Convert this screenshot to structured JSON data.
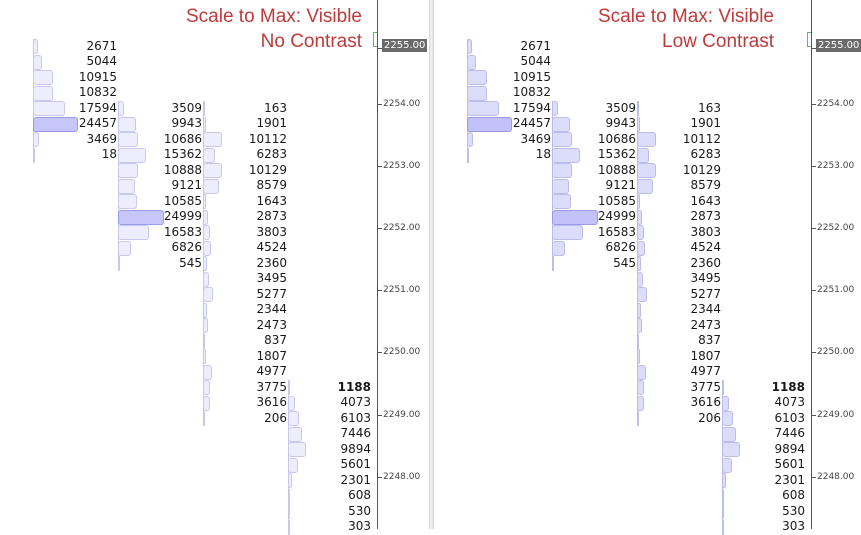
{
  "colors": {
    "title": "#c0393b",
    "price_tag_bg": "#6a6a6a",
    "price_marker": "#58c058",
    "no_contrast": {
      "fill": "#ededfd",
      "fill_max": "#c6c6fb",
      "border": "#c8c8ee",
      "border_max": "#9a9ae6"
    },
    "low_contrast": {
      "fill": "#dcdcfb",
      "fill_max": "#c2c2f8",
      "border": "#bcbcec",
      "border_max": "#9a9ae6"
    }
  },
  "panels": [
    {
      "id": "left",
      "title_line1": "Scale to Max: Visible",
      "title_line2": "No Contrast",
      "palette": "no_contrast",
      "current_price": "2255.00",
      "axis_labels": [
        "2255.00",
        "2254.00",
        "2253.00",
        "2252.00",
        "2251.00",
        "2250.00",
        "2249.00",
        "2248.00"
      ],
      "columns": [
        {
          "rows": [
            {
              "value": 2671,
              "level": 1
            },
            {
              "value": 5044,
              "level": 2
            },
            {
              "value": 10915,
              "level": 3
            },
            {
              "value": 10832,
              "level": 4
            },
            {
              "value": 17594,
              "level": 5
            },
            {
              "value": 24457,
              "level": 6
            },
            {
              "value": 3469,
              "level": 7
            },
            {
              "value": 18,
              "level": 8
            }
          ]
        },
        {
          "rows": [
            {
              "value": 3509,
              "level": 5
            },
            {
              "value": 9943,
              "level": 6
            },
            {
              "value": 10686,
              "level": 7
            },
            {
              "value": 15362,
              "level": 8
            },
            {
              "value": 10888,
              "level": 9
            },
            {
              "value": 9121,
              "level": 10
            },
            {
              "value": 10585,
              "level": 11
            },
            {
              "value": 24999,
              "level": 12
            },
            {
              "value": 16583,
              "level": 13
            },
            {
              "value": 6826,
              "level": 14
            },
            {
              "value": 545,
              "level": 15
            }
          ]
        },
        {
          "rows": [
            {
              "value": 163,
              "level": 5
            },
            {
              "value": 1901,
              "level": 6
            },
            {
              "value": 10112,
              "level": 7
            },
            {
              "value": 6283,
              "level": 8
            },
            {
              "value": 10129,
              "level": 9
            },
            {
              "value": 8579,
              "level": 10
            },
            {
              "value": 1643,
              "level": 11
            },
            {
              "value": 2873,
              "level": 12
            },
            {
              "value": 3803,
              "level": 13
            },
            {
              "value": 4524,
              "level": 14
            },
            {
              "value": 2360,
              "level": 15
            },
            {
              "value": 3495,
              "level": 16
            },
            {
              "value": 5277,
              "level": 17
            },
            {
              "value": 2344,
              "level": 18
            },
            {
              "value": 2473,
              "level": 19
            },
            {
              "value": 837,
              "level": 20
            },
            {
              "value": 1807,
              "level": 21
            },
            {
              "value": 4977,
              "level": 22
            },
            {
              "value": 3775,
              "level": 23
            },
            {
              "value": 3616,
              "level": 24
            },
            {
              "value": 206,
              "level": 25
            }
          ]
        },
        {
          "rows": [
            {
              "value": 1188,
              "level": 23,
              "bold": true
            },
            {
              "value": 4073,
              "level": 24
            },
            {
              "value": 6103,
              "level": 25
            },
            {
              "value": 7446,
              "level": 26
            },
            {
              "value": 9894,
              "level": 27
            },
            {
              "value": 5601,
              "level": 28
            },
            {
              "value": 2301,
              "level": 29
            },
            {
              "value": 608,
              "level": 30
            },
            {
              "value": 530,
              "level": 31
            },
            {
              "value": 303,
              "level": 32
            }
          ]
        }
      ]
    },
    {
      "id": "right",
      "title_line1": "Scale to Max: Visible",
      "title_line2": "Low Contrast",
      "palette": "low_contrast",
      "current_price": "2255.00",
      "axis_labels": [
        "2255.00",
        "2254.00",
        "2253.00",
        "2252.00",
        "2251.00",
        "2250.00",
        "2249.00",
        "2248.00"
      ],
      "columns": [
        {
          "rows": [
            {
              "value": 2671,
              "level": 1
            },
            {
              "value": 5044,
              "level": 2
            },
            {
              "value": 10915,
              "level": 3
            },
            {
              "value": 10832,
              "level": 4
            },
            {
              "value": 17594,
              "level": 5
            },
            {
              "value": 24457,
              "level": 6
            },
            {
              "value": 3469,
              "level": 7
            },
            {
              "value": 18,
              "level": 8
            }
          ]
        },
        {
          "rows": [
            {
              "value": 3509,
              "level": 5
            },
            {
              "value": 9943,
              "level": 6
            },
            {
              "value": 10686,
              "level": 7
            },
            {
              "value": 15362,
              "level": 8
            },
            {
              "value": 10888,
              "level": 9
            },
            {
              "value": 9121,
              "level": 10
            },
            {
              "value": 10585,
              "level": 11
            },
            {
              "value": 24999,
              "level": 12
            },
            {
              "value": 16583,
              "level": 13
            },
            {
              "value": 6826,
              "level": 14
            },
            {
              "value": 545,
              "level": 15
            }
          ]
        },
        {
          "rows": [
            {
              "value": 163,
              "level": 5
            },
            {
              "value": 1901,
              "level": 6
            },
            {
              "value": 10112,
              "level": 7
            },
            {
              "value": 6283,
              "level": 8
            },
            {
              "value": 10129,
              "level": 9
            },
            {
              "value": 8579,
              "level": 10
            },
            {
              "value": 1643,
              "level": 11
            },
            {
              "value": 2873,
              "level": 12
            },
            {
              "value": 3803,
              "level": 13
            },
            {
              "value": 4524,
              "level": 14
            },
            {
              "value": 2360,
              "level": 15
            },
            {
              "value": 3495,
              "level": 16
            },
            {
              "value": 5277,
              "level": 17
            },
            {
              "value": 2344,
              "level": 18
            },
            {
              "value": 2473,
              "level": 19
            },
            {
              "value": 837,
              "level": 20
            },
            {
              "value": 1807,
              "level": 21
            },
            {
              "value": 4977,
              "level": 22
            },
            {
              "value": 3775,
              "level": 23
            },
            {
              "value": 3616,
              "level": 24
            },
            {
              "value": 206,
              "level": 25
            }
          ]
        },
        {
          "rows": [
            {
              "value": 1188,
              "level": 23,
              "bold": true
            },
            {
              "value": 4073,
              "level": 24
            },
            {
              "value": 6103,
              "level": 25
            },
            {
              "value": 7446,
              "level": 26
            },
            {
              "value": 9894,
              "level": 27
            },
            {
              "value": 5601,
              "level": 28
            },
            {
              "value": 2301,
              "level": 29
            },
            {
              "value": 608,
              "level": 30
            },
            {
              "value": 530,
              "level": 31
            },
            {
              "value": 303,
              "level": 32
            }
          ]
        }
      ]
    }
  ]
}
